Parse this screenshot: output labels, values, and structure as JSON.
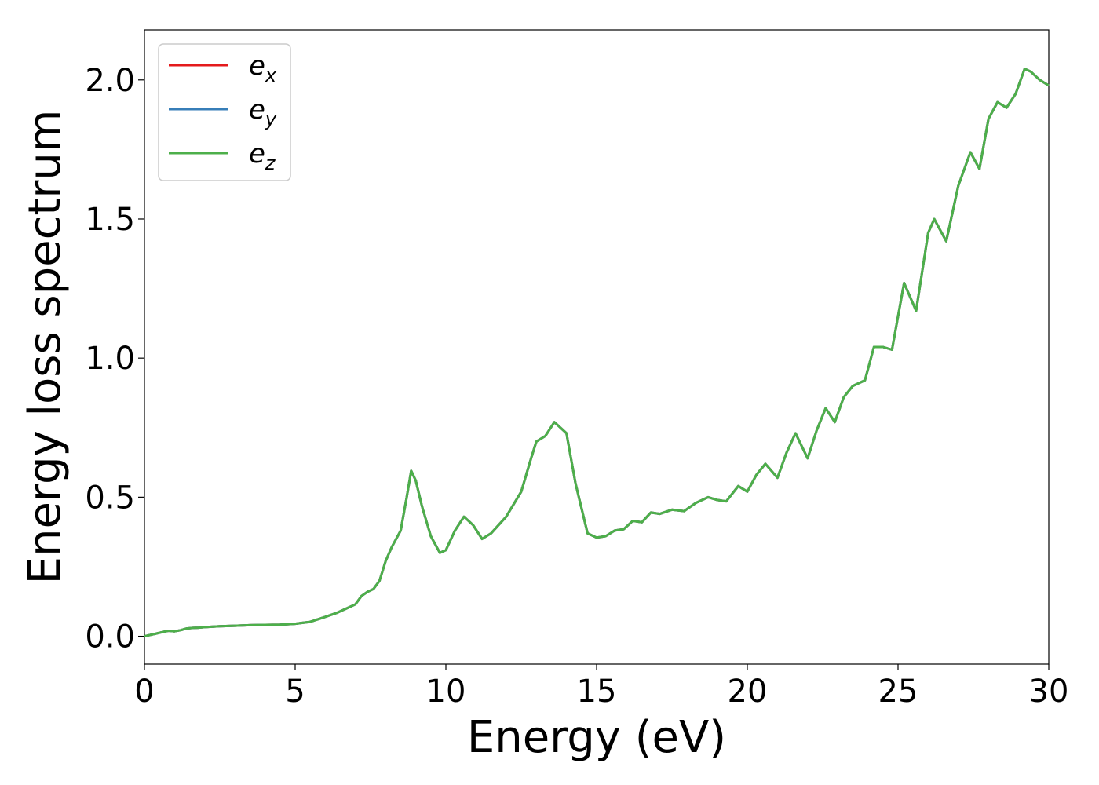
{
  "chart_data": {
    "type": "line",
    "title": "",
    "xlabel": "Energy (eV)",
    "ylabel": "Energy loss spectrum",
    "xlim": [
      0,
      30
    ],
    "ylim": [
      -0.1,
      2.18
    ],
    "xticks": [
      0,
      5,
      10,
      15,
      20,
      25,
      30
    ],
    "xtick_labels": [
      "0",
      "5",
      "10",
      "15",
      "20",
      "25",
      "30"
    ],
    "yticks": [
      0.0,
      0.5,
      1.0,
      1.5,
      2.0
    ],
    "ytick_labels": [
      "0.0",
      "0.5",
      "1.0",
      "1.5",
      "2.0"
    ],
    "grid": false,
    "legend_position": "top-left",
    "series": [
      {
        "name": "x",
        "color": "#e41a1c"
      },
      {
        "name": "y",
        "color": "#377eb8"
      },
      {
        "name": "z",
        "color": "#4daf4a"
      }
    ],
    "x": [
      0,
      0.4,
      0.6,
      0.8,
      1.0,
      1.2,
      1.4,
      1.6,
      1.8,
      2.0,
      2.5,
      3.0,
      3.5,
      4.0,
      4.5,
      5.0,
      5.5,
      6.0,
      6.4,
      6.7,
      7.0,
      7.2,
      7.4,
      7.6,
      7.8,
      8.0,
      8.2,
      8.5,
      8.7,
      8.85,
      9.0,
      9.2,
      9.5,
      9.8,
      10.0,
      10.3,
      10.6,
      10.9,
      11.2,
      11.5,
      12.0,
      12.5,
      12.8,
      13.0,
      13.3,
      13.6,
      14.0,
      14.3,
      14.7,
      15.0,
      15.3,
      15.6,
      15.9,
      16.2,
      16.5,
      16.8,
      17.1,
      17.5,
      17.9,
      18.3,
      18.7,
      19.0,
      19.3,
      19.7,
      20.0,
      20.3,
      20.6,
      21.0,
      21.3,
      21.6,
      22.0,
      22.3,
      22.6,
      22.9,
      23.2,
      23.5,
      23.9,
      24.2,
      24.5,
      24.8,
      25.2,
      25.6,
      26.0,
      26.2,
      26.6,
      27.0,
      27.4,
      27.7,
      28.0,
      28.3,
      28.6,
      28.9,
      29.2,
      29.4,
      29.7,
      30.0
    ],
    "values": [
      0.0,
      0.01,
      0.015,
      0.02,
      0.018,
      0.022,
      0.028,
      0.03,
      0.031,
      0.033,
      0.036,
      0.038,
      0.04,
      0.041,
      0.042,
      0.045,
      0.052,
      0.07,
      0.085,
      0.1,
      0.115,
      0.145,
      0.16,
      0.17,
      0.2,
      0.27,
      0.32,
      0.38,
      0.5,
      0.595,
      0.56,
      0.47,
      0.36,
      0.3,
      0.31,
      0.38,
      0.43,
      0.4,
      0.35,
      0.37,
      0.43,
      0.52,
      0.63,
      0.7,
      0.72,
      0.77,
      0.73,
      0.55,
      0.37,
      0.355,
      0.36,
      0.38,
      0.385,
      0.415,
      0.41,
      0.445,
      0.44,
      0.455,
      0.45,
      0.48,
      0.5,
      0.49,
      0.485,
      0.54,
      0.52,
      0.58,
      0.62,
      0.57,
      0.66,
      0.73,
      0.64,
      0.74,
      0.82,
      0.77,
      0.86,
      0.9,
      0.92,
      1.04,
      1.04,
      1.03,
      1.27,
      1.17,
      1.45,
      1.5,
      1.42,
      1.62,
      1.74,
      1.68,
      1.86,
      1.92,
      1.9,
      1.95,
      2.04,
      2.03,
      2.0,
      1.98
    ]
  }
}
